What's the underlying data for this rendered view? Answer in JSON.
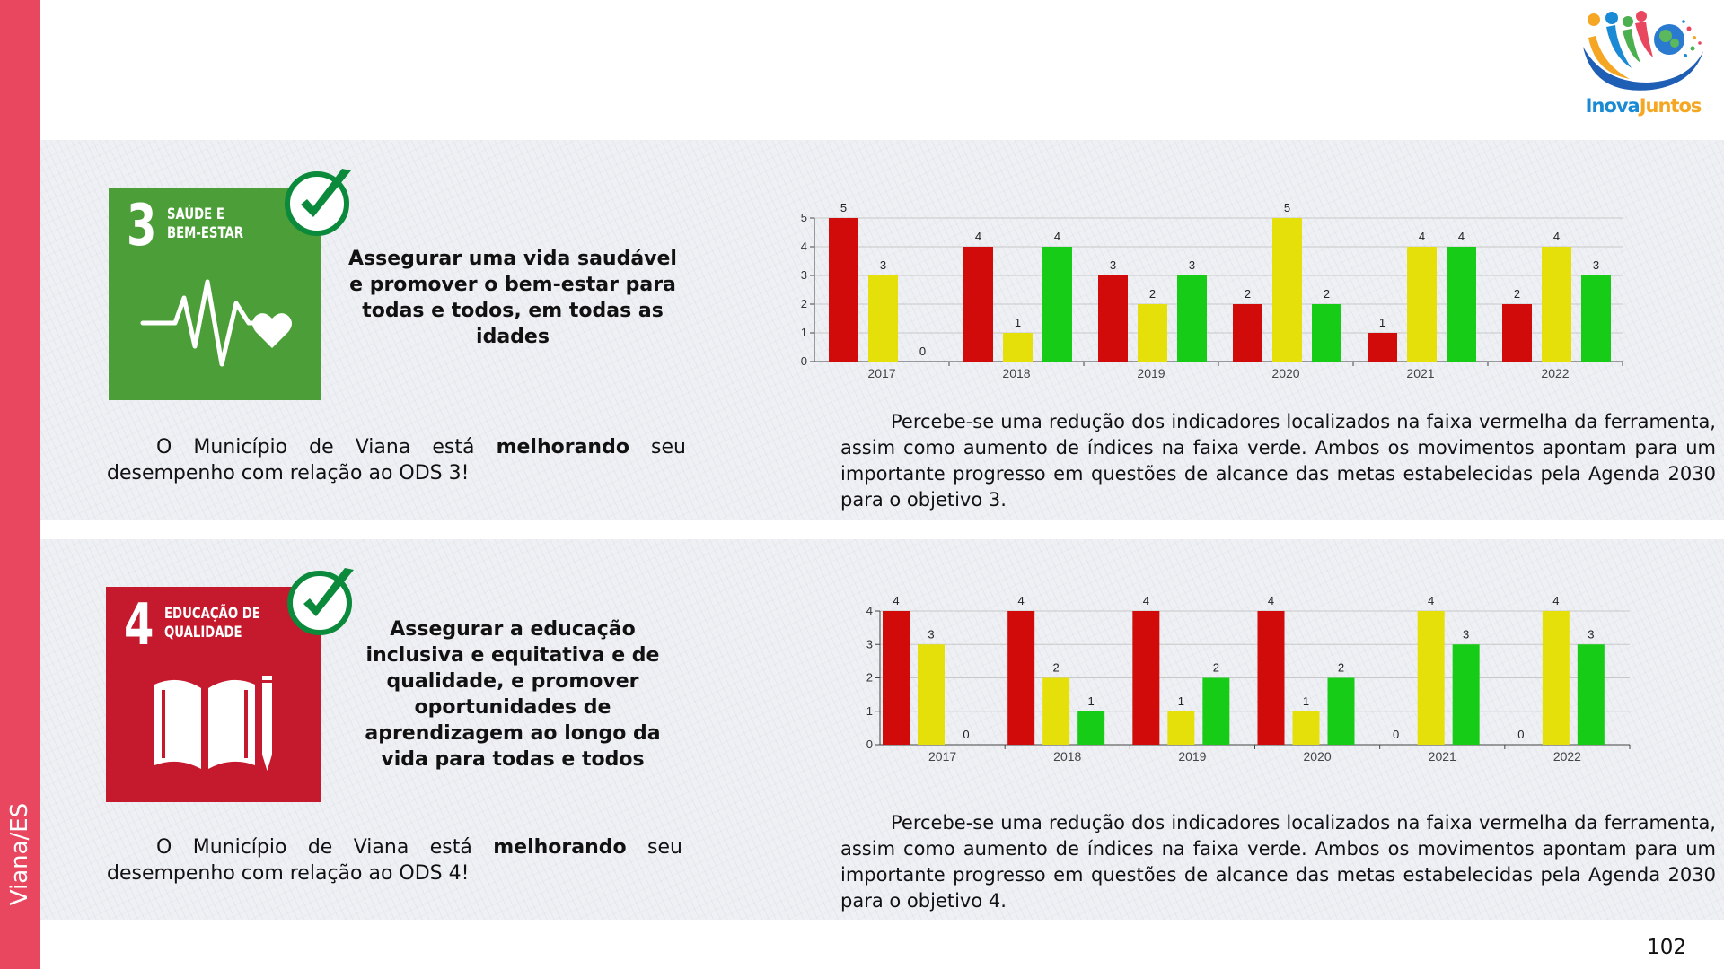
{
  "sidebar": {
    "label": "Viana/ES"
  },
  "logo": {
    "text_part1": "Inova",
    "text_part2": "Juntos",
    "color1": "#1a8ad4",
    "color2": "#f5a623"
  },
  "page_number": "102",
  "sections": [
    {
      "sdg": {
        "number": "3",
        "name_line1": "SAÚDE E",
        "name_line2": "BEM-ESTAR",
        "color": "#4c9f38",
        "icon": "heartbeat-icon"
      },
      "goal_text": "Assegurar uma vida saudável e promover o bem-estar para todas e todos, em todas as idades",
      "status": {
        "prefix": "O Município de Viana está",
        "emphasis": "melhorando",
        "suffix": "seu desempenho com relação ao ODS 3!"
      },
      "description": "Percebe-se uma redução dos indicadores localizados na faixa vermelha da ferramenta, assim como aumento de índices na faixa verde. Ambos os movimentos apontam para um importante progresso em questões de alcance das metas estabelecidas pela Agenda 2030 para o objetivo 3."
    },
    {
      "sdg": {
        "number": "4",
        "name_line1": "EDUCAÇÃO DE",
        "name_line2": "QUALIDADE",
        "color": "#c5192d",
        "icon": "book-pencil-icon"
      },
      "goal_text": "Assegurar a educação inclusiva e equitativa e de qualidade, e promover oportunidades de aprendizagem ao longo da vida para todas e todos",
      "status": {
        "prefix": "O Município de Viana está",
        "emphasis": "melhorando",
        "suffix": "seu desempenho com relação ao ODS 4!"
      },
      "description": "Percebe-se uma redução dos indicadores localizados na faixa vermelha da ferramenta, assim como aumento de índices na faixa verde. Ambos os movimentos apontam para um importante progresso em questões de alcance das metas estabelecidas pela Agenda 2030 para o objetivo 4."
    }
  ],
  "chart_data": [
    {
      "type": "bar",
      "categories": [
        "2017",
        "2018",
        "2019",
        "2020",
        "2021",
        "2022"
      ],
      "series": [
        {
          "values": [
            5,
            4,
            3,
            2,
            1,
            2
          ],
          "color": "#d10a0a"
        },
        {
          "values": [
            3,
            1,
            2,
            5,
            4,
            4
          ],
          "color": "#e6e00a"
        },
        {
          "values": [
            0,
            4,
            3,
            2,
            4,
            3
          ],
          "color": "#16cc16"
        }
      ],
      "ylim": [
        0,
        5
      ],
      "yticks": [
        0,
        1,
        2,
        3,
        4,
        5
      ],
      "grid": true,
      "data_labels": true
    },
    {
      "type": "bar",
      "categories": [
        "2017",
        "2018",
        "2019",
        "2020",
        "2021",
        "2022"
      ],
      "series": [
        {
          "values": [
            4,
            4,
            4,
            4,
            0,
            0
          ],
          "color": "#d10a0a"
        },
        {
          "values": [
            3,
            2,
            1,
            1,
            4,
            4
          ],
          "color": "#e6e00a"
        },
        {
          "values": [
            0,
            1,
            2,
            2,
            3,
            3
          ],
          "color": "#16cc16"
        }
      ],
      "ylim": [
        0,
        4
      ],
      "yticks": [
        0,
        1,
        2,
        3,
        4
      ],
      "grid": true,
      "data_labels": true
    }
  ]
}
